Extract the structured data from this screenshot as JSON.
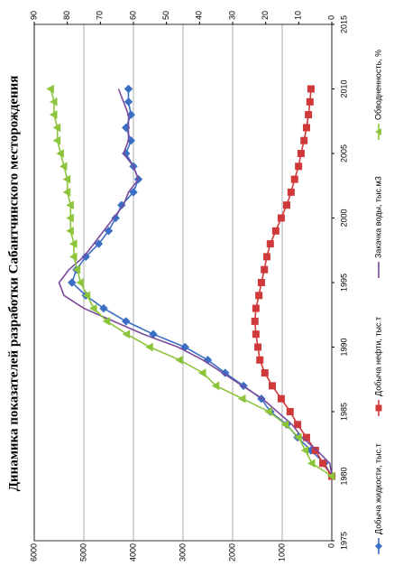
{
  "chart_data": {
    "type": "line",
    "title": "Динамика показателей разработки Сабантчинского месторождения",
    "x": [
      1980,
      1981,
      1982,
      1983,
      1984,
      1985,
      1986,
      1987,
      1988,
      1989,
      1990,
      1991,
      1992,
      1993,
      1994,
      1995,
      1996,
      1997,
      1998,
      1999,
      2000,
      2001,
      2002,
      2003,
      2004,
      2005,
      2006,
      2007,
      2008,
      2009,
      2010
    ],
    "xlim": [
      1975,
      2015
    ],
    "xticks": [
      1975,
      1980,
      1985,
      1990,
      1995,
      2000,
      2005,
      2010,
      2015
    ],
    "ylim": [
      0,
      6000
    ],
    "yticks": [
      0,
      1000,
      2000,
      3000,
      4000,
      5000,
      6000
    ],
    "y2lim": [
      0,
      90
    ],
    "y2ticks": [
      0,
      10,
      20,
      30,
      40,
      50,
      60,
      70,
      80,
      90
    ],
    "grid": true,
    "series": [
      {
        "name": "Добыча жидкости, тыс.т",
        "color": "#3a6fc4",
        "marker": "diamond",
        "values": [
          0,
          150,
          420,
          690,
          910,
          1240,
          1420,
          1780,
          2150,
          2500,
          2960,
          3600,
          4150,
          4600,
          4960,
          5240,
          5150,
          4960,
          4700,
          4500,
          4360,
          4240,
          4000,
          3900,
          4000,
          4150,
          4050,
          4150,
          4050,
          4100,
          4100
        ]
      },
      {
        "name": "Добыча нефти, тыс.т",
        "color": "#d0393a",
        "marker": "square",
        "values": [
          0,
          180,
          330,
          510,
          690,
          840,
          1020,
          1200,
          1350,
          1450,
          1490,
          1530,
          1550,
          1530,
          1470,
          1420,
          1360,
          1310,
          1240,
          1130,
          1020,
          910,
          820,
          750,
          670,
          620,
          560,
          510,
          470,
          440,
          420
        ]
      },
      {
        "name": "Закачка воды, тыс.м3",
        "color": "#7a4a9e",
        "marker": "none",
        "values": [
          0,
          40,
          300,
          600,
          800,
          1100,
          1400,
          1800,
          2200,
          2600,
          3100,
          3800,
          4400,
          5000,
          5400,
          5500,
          5300,
          5000,
          4800,
          4600,
          4400,
          4200,
          4100,
          3900,
          4000,
          4200,
          4100,
          4100,
          4100,
          4200,
          4300
        ]
      },
      {
        "name": "Обводненность, %",
        "color": "#8cc43a",
        "marker": "triangle",
        "axis": "y2",
        "values": [
          0,
          6,
          8,
          10,
          14,
          19,
          27,
          35,
          39,
          46,
          55,
          62,
          68,
          72,
          74,
          76,
          77,
          78,
          78,
          79,
          79,
          79,
          80,
          80,
          81,
          82,
          83,
          83,
          84,
          84,
          85
        ]
      }
    ]
  }
}
